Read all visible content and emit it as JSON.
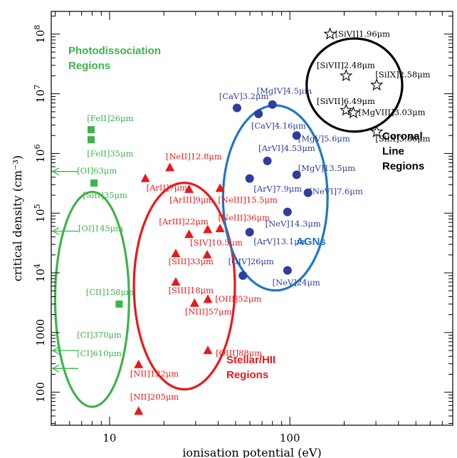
{
  "chart_data": {
    "type": "scatter",
    "xlabel": "ionisation potential (eV)",
    "ylabel": "critical density (cm⁻³)",
    "xscale": "log",
    "yscale": "log",
    "xlim": [
      4.75,
      800
    ],
    "ylim": [
      28,
      240000000
    ],
    "x_ticks": [
      {
        "value": 10,
        "label": "10"
      },
      {
        "value": 100,
        "label": "100"
      }
    ],
    "y_ticks": [
      {
        "value": 100,
        "label": "100"
      },
      {
        "value": 1000,
        "label": "1000"
      },
      {
        "value": 10000,
        "label": "10^4"
      },
      {
        "value": 100000,
        "label": "10^5"
      },
      {
        "value": 1000000,
        "label": "10^6"
      },
      {
        "value": 10000000,
        "label": "10^7"
      },
      {
        "value": 100000000,
        "label": "10^8"
      }
    ],
    "colors": {
      "pdr": "#3cb44b",
      "hii": "#e8191b",
      "agn": "#2e3d9e",
      "coronal": "#000000",
      "agn_ellipse": "#1f77c4"
    },
    "regions": [
      {
        "name": "Photodissociation Regions",
        "lines": [
          "Photodissociation",
          "Regions"
        ],
        "color": "#3cb44b",
        "center": [
          8,
          3600
        ],
        "rx": 0.205,
        "ry": 1.8
      },
      {
        "name": "Stellar/HII Regions",
        "lines": [
          "Stellar/HII",
          "Regions"
        ],
        "color": "#e8191b",
        "center": [
          26,
          6000
        ],
        "rx": 0.28,
        "ry": 1.73
      },
      {
        "name": "AGNs",
        "lines": [
          "AGNs"
        ],
        "color": "#1f77c4",
        "center": [
          83,
          180000
        ],
        "rx": 0.29,
        "ry": 1.55
      },
      {
        "name": "Coronal Line Regions",
        "lines": [
          "Coronal",
          "Line",
          "Regions"
        ],
        "color": "#000000",
        "center": [
          228,
          14000000
        ],
        "rx": 0.265,
        "ry": 0.78
      }
    ],
    "series": [
      {
        "name": "PDR",
        "marker": "square",
        "color": "#3cb44b",
        "points": [
          {
            "x": 7.9,
            "y": 2500000,
            "label": "[FeII]26μm",
            "lx": 7.5,
            "ly": 3500000
          },
          {
            "x": 7.9,
            "y": 1700000,
            "label": "[FeII]35μm",
            "lx": 7.5,
            "ly": 900000
          },
          {
            "x": 8.2,
            "y": 320000,
            "label": "[SiII]35μm",
            "lx": 7.1,
            "ly": 180000
          },
          {
            "x": 11.3,
            "y": 3000,
            "label": "[CII]158μm",
            "lx": 7.4,
            "ly": 4300
          },
          {
            "x": 5,
            "y": 500000,
            "label": "[OI]63μm",
            "lx": 6.6,
            "ly": 460000,
            "arrow": true
          },
          {
            "x": 5,
            "y": 50000,
            "label": "[OI]145μm",
            "lx": 6.7,
            "ly": 50000,
            "arrow": true
          },
          {
            "x": 5,
            "y": 500,
            "label": "[CI]370μm",
            "lx": 6.6,
            "ly": 820,
            "arrow": true
          },
          {
            "x": 5,
            "y": 250,
            "label": "[CI]610μm",
            "lx": 6.6,
            "ly": 400,
            "arrow": true
          }
        ]
      },
      {
        "name": "Stellar/HII",
        "marker": "triangle",
        "color": "#e8191b",
        "points": [
          {
            "x": 21.6,
            "y": 580000,
            "label": "[NeII]12.8μm",
            "lx": 20.5,
            "ly": 800000
          },
          {
            "x": 15.8,
            "y": 380000,
            "label": "[ArII]7μm",
            "lx": 16,
            "ly": 240000
          },
          {
            "x": 27.6,
            "y": 250000,
            "label": "[ArIII]9μm",
            "lx": 21.5,
            "ly": 150000
          },
          {
            "x": 41,
            "y": 260000,
            "label": "[NeIII]15.5μm",
            "lx": 40,
            "ly": 150000
          },
          {
            "x": 27.6,
            "y": 44000,
            "label": "[ArIII]22μm",
            "lx": 18.8,
            "ly": 65000
          },
          {
            "x": 35,
            "y": 53000,
            "label": "",
            "lx": 0,
            "ly": 0
          },
          {
            "x": 41,
            "y": 55000,
            "label": "[NeIII]36μm",
            "lx": 40,
            "ly": 75000
          },
          {
            "x": 34.8,
            "y": 20000,
            "label": "[SIV]10.5μm",
            "lx": 28,
            "ly": 29000
          },
          {
            "x": 23.3,
            "y": 21000,
            "label": "[SIII]33μm",
            "lx": 21.2,
            "ly": 14000
          },
          {
            "x": 23.3,
            "y": 7000,
            "label": "[SIII]18μm",
            "lx": 21.2,
            "ly": 4600
          },
          {
            "x": 29.6,
            "y": 3100,
            "label": "[NIII]57μm",
            "lx": 26.2,
            "ly": 2000
          },
          {
            "x": 35.1,
            "y": 3600,
            "label": "[OIII]52μm",
            "lx": 38.5,
            "ly": 3300
          },
          {
            "x": 35.1,
            "y": 500,
            "label": "[OIII]88μm",
            "lx": 38.8,
            "ly": 410
          },
          {
            "x": 14.5,
            "y": 290,
            "label": "[NII]122μm",
            "lx": 13,
            "ly": 185
          },
          {
            "x": 14.5,
            "y": 48,
            "label": "[NII]205μm",
            "lx": 13,
            "ly": 75
          }
        ]
      },
      {
        "name": "AGN",
        "marker": "circle",
        "color": "#2e3d9e",
        "points": [
          {
            "x": 50.9,
            "y": 5800000,
            "label": "[CaV]3.2μm",
            "lx": 40.5,
            "ly": 8200000
          },
          {
            "x": 80,
            "y": 6600000,
            "label": "[MgIV]4.5μm",
            "lx": 65.5,
            "ly": 10000000
          },
          {
            "x": 67,
            "y": 4600000,
            "label": "[CaV]4.16μm",
            "lx": 61,
            "ly": 2600000
          },
          {
            "x": 109,
            "y": 2000000,
            "label": "[MgV]5.6μm",
            "lx": 111,
            "ly": 1600000
          },
          {
            "x": 75,
            "y": 750000,
            "label": "[ArVI]4.53μm",
            "lx": 67,
            "ly": 1100000
          },
          {
            "x": 109,
            "y": 440000,
            "label": "[MgV]13.5μm",
            "lx": 111,
            "ly": 510000
          },
          {
            "x": 59.8,
            "y": 380000,
            "label": "[ArV]7.9μm",
            "lx": 63,
            "ly": 230000
          },
          {
            "x": 126,
            "y": 220000,
            "label": "[NeVI]7.6μm",
            "lx": 128,
            "ly": 210000
          },
          {
            "x": 97,
            "y": 105000,
            "label": "[NeV]14.3μm",
            "lx": 73,
            "ly": 60000
          },
          {
            "x": 59.8,
            "y": 48000,
            "label": "[ArV]13.1μm",
            "lx": 63,
            "ly": 30000
          },
          {
            "x": 54.9,
            "y": 9000,
            "label": "[OIV]26μm",
            "lx": 45.5,
            "ly": 14000
          },
          {
            "x": 97,
            "y": 11000,
            "label": "[NeV]24μm",
            "lx": 80,
            "ly": 6200
          }
        ]
      },
      {
        "name": "Coronal",
        "marker": "star",
        "color": "#000000",
        "points": [
          {
            "x": 167,
            "y": 100000000,
            "label": "[SiVI]1.96μm",
            "lx": 178,
            "ly": 90000000
          },
          {
            "x": 205,
            "y": 20000000,
            "label": "[SiVII]2.48μm",
            "lx": 141,
            "ly": 27000000
          },
          {
            "x": 303,
            "y": 14000000,
            "label": "[SiIX]2.58μm",
            "lx": 298,
            "ly": 19000000
          },
          {
            "x": 205,
            "y": 5300000,
            "label": "[SiVII]6.49μm",
            "lx": 141,
            "ly": 6700000
          },
          {
            "x": 225,
            "y": 4800000,
            "label": "[MgVIII]3.03μm",
            "lx": 240,
            "ly": 4400000
          },
          {
            "x": 303,
            "y": 2300000,
            "label": "[SiIX]3.86μm",
            "lx": 298,
            "ly": 1600000
          }
        ]
      }
    ]
  }
}
